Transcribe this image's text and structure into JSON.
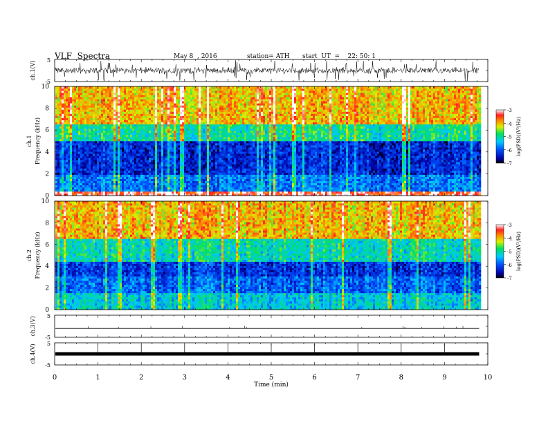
{
  "header": {
    "title": "VLF  Spectra",
    "date": "May 8  , 2016",
    "station": "station= ATH",
    "start": "start  UT  =    22: 50: 1"
  },
  "chart_data": [
    {
      "type": "line",
      "panel": "ch1-waveform",
      "ylabel": "ch.1(V)",
      "ylim": [
        -5,
        5
      ],
      "y_ticks": [
        "5",
        "-5"
      ],
      "xlim": [
        0,
        10
      ],
      "summary": "broadband noise ~ -2..+2 V with spikes to the limits",
      "x_end": 9.8
    },
    {
      "type": "heatmap",
      "panel": "ch1-spectrogram",
      "ylabel": "ch.1\nFrequency  (kHz)",
      "ylim": [
        0,
        10
      ],
      "y_ticks": [
        "0",
        "2",
        "4",
        "6",
        "8",
        "10"
      ],
      "colorbar": {
        "label": "log(PSD)(V²/Hz)",
        "range": [
          -7,
          -3
        ],
        "ticks": [
          "-3",
          "-4",
          "-5",
          "-6",
          "-7"
        ]
      },
      "bands_kHz": [
        {
          "from": 0,
          "to": 0.4,
          "level": -3.3
        },
        {
          "from": 0.4,
          "to": 2.0,
          "level": -5.8
        },
        {
          "from": 2.0,
          "to": 5.0,
          "level": -6.3
        },
        {
          "from": 5.0,
          "to": 6.5,
          "level": -5.0
        },
        {
          "from": 6.5,
          "to": 10.0,
          "level": -4.0
        }
      ]
    },
    {
      "type": "heatmap",
      "panel": "ch2-spectrogram",
      "ylabel": "ch.2\nFrequency  (kHz)",
      "ylim": [
        0,
        10
      ],
      "y_ticks": [
        "0",
        "2",
        "4",
        "6",
        "8",
        "10"
      ],
      "colorbar": {
        "label": "log(PSD)(V²/Hz)",
        "range": [
          -7,
          -3
        ],
        "ticks": [
          "-3",
          "-4",
          "-5",
          "-6",
          "-7"
        ]
      },
      "bands_kHz": [
        {
          "from": 0,
          "to": 1.5,
          "level": -5.3
        },
        {
          "from": 1.5,
          "to": 3.0,
          "level": -5.9
        },
        {
          "from": 3.0,
          "to": 4.5,
          "level": -6.2
        },
        {
          "from": 4.5,
          "to": 6.5,
          "level": -5.1
        },
        {
          "from": 6.5,
          "to": 10.0,
          "level": -4.0
        }
      ]
    },
    {
      "type": "line",
      "panel": "ch3-waveform",
      "ylabel": "ch.3(V)",
      "ylim": [
        -5,
        5
      ],
      "y_ticks": [
        "5",
        "-5"
      ],
      "summary": "near-flat trace around -1 V",
      "level": -1
    },
    {
      "type": "line",
      "panel": "ch4-waveform",
      "ylabel": "ch.4(V)",
      "ylim": [
        -5,
        5
      ],
      "y_ticks": [
        "5",
        "-5"
      ],
      "summary": "thick flat trace around 0 V",
      "level": 0
    }
  ],
  "x_axis": {
    "label": "Time  (min)",
    "range": [
      0,
      10
    ],
    "ticks": [
      "0",
      "1",
      "2",
      "3",
      "4",
      "5",
      "6",
      "7",
      "8",
      "9",
      "10"
    ]
  }
}
